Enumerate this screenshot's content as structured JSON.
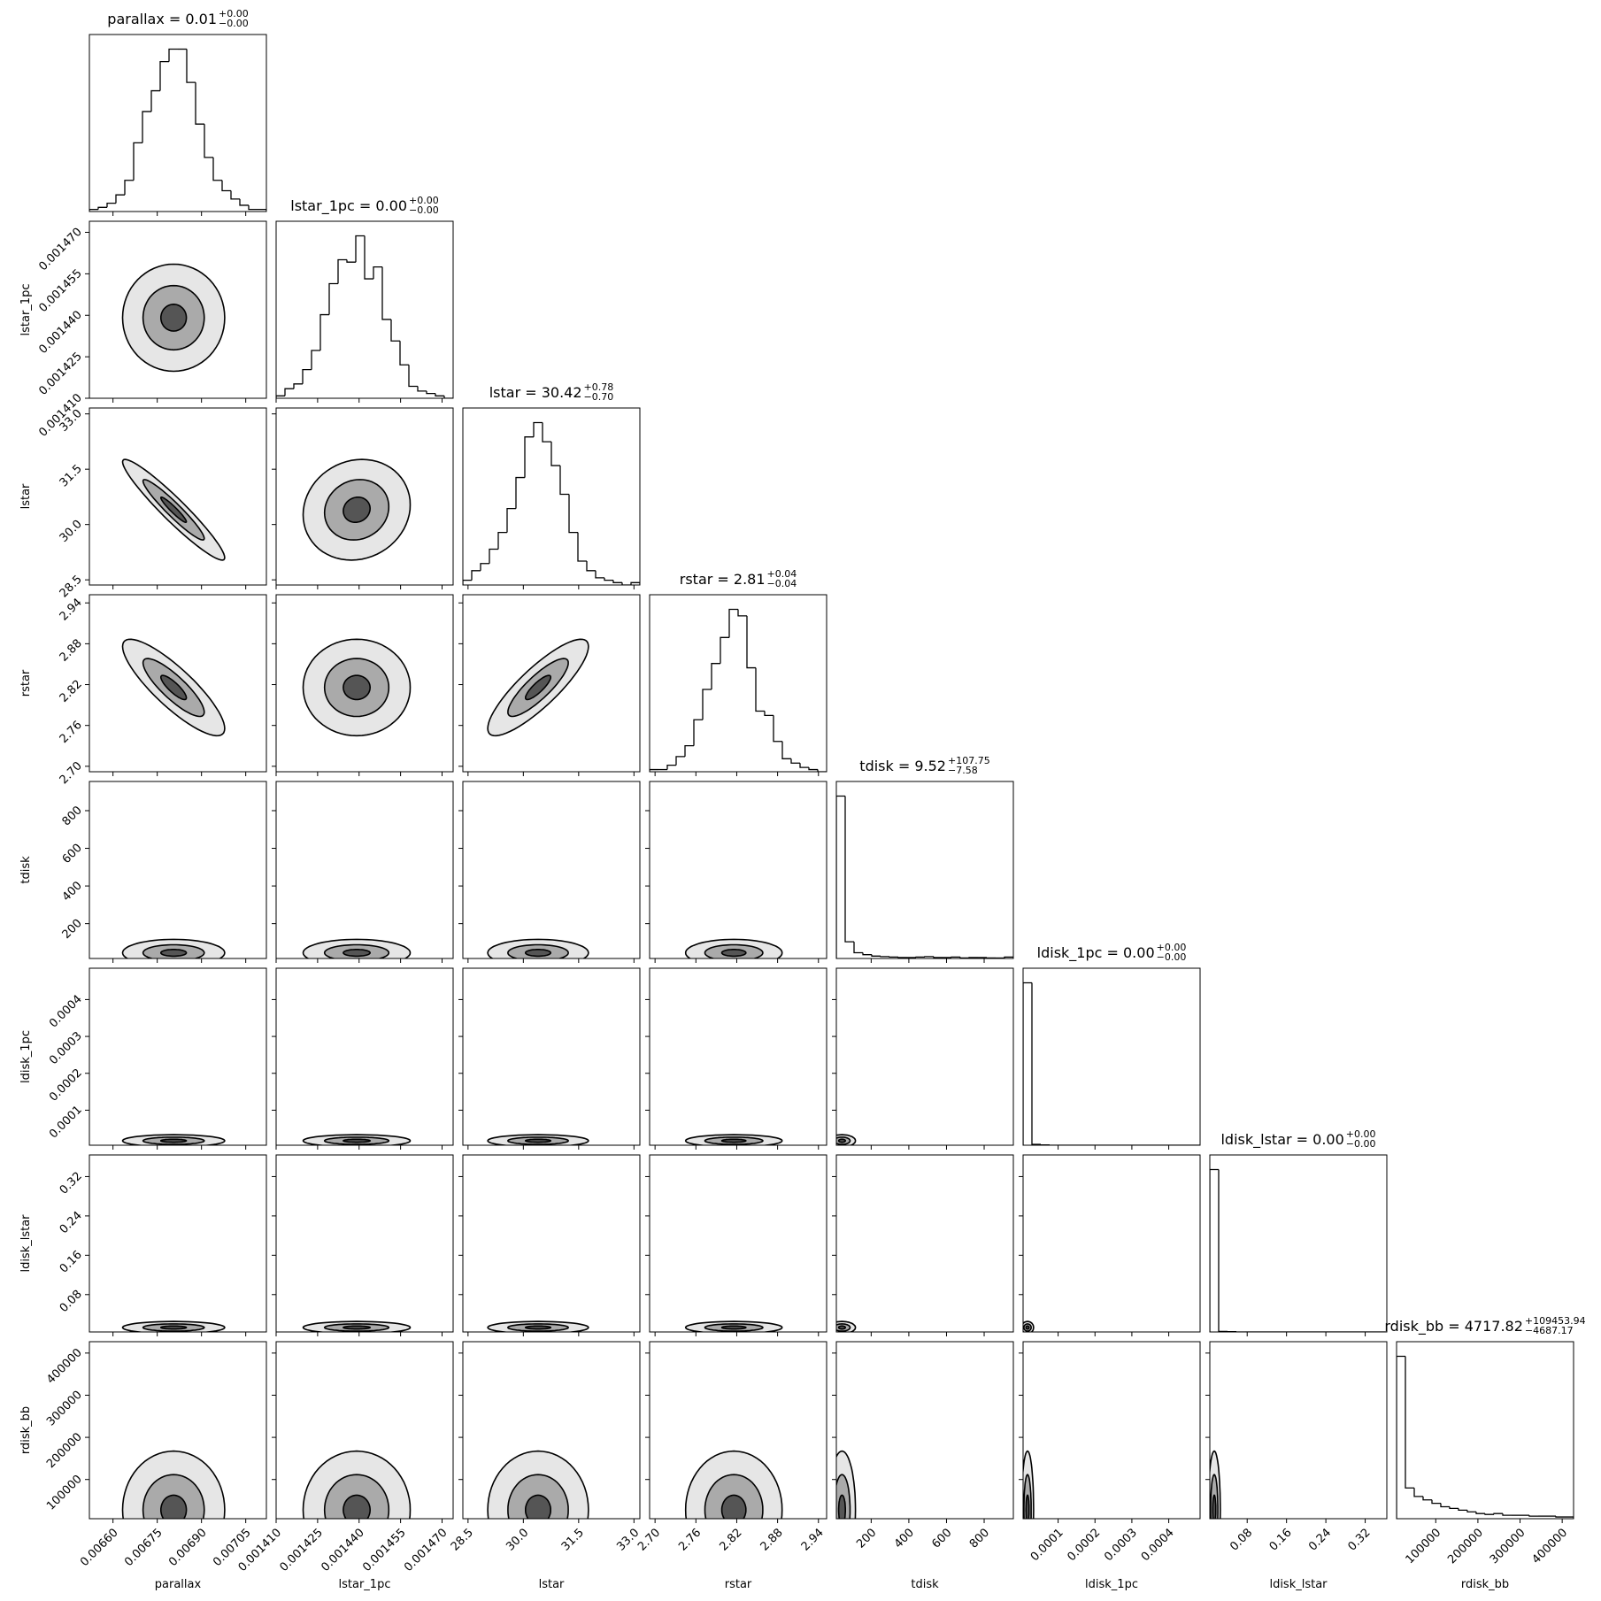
{
  "chart_data": {
    "type": "corner",
    "params": [
      {
        "name": "parallax",
        "title": "parallax = 0.01",
        "upper": "+0.00",
        "lower": "−0.00",
        "lim": [
          0.00652,
          0.00712
        ],
        "ticks": [
          {
            "value": 0.0066,
            "label": "0.00660"
          },
          0.00675,
          {
            "value": 0.0069,
            "label": "0.00690"
          },
          0.00705
        ],
        "bins": [
          0.00652,
          0.00655,
          0.00658,
          0.00661,
          0.00664,
          0.00667,
          0.0067,
          0.00673,
          0.00676,
          0.00679,
          0.00682,
          0.00685,
          0.00688,
          0.00691,
          0.00694,
          0.00697,
          0.007,
          0.00703,
          0.00706,
          0.00709,
          0.00712
        ],
        "counts": [
          1,
          2,
          4,
          8,
          15,
          33,
          48,
          58,
          72,
          78,
          78,
          62,
          42,
          26,
          15,
          10,
          6,
          3,
          1,
          1
        ]
      },
      {
        "name": "lstar_1pc",
        "title": "lstar_1pc = 0.00",
        "upper": "+0.00",
        "lower": "−0.00",
        "lim": [
          0.00141,
          0.001474
        ],
        "ticks": [
          {
            "value": 0.00141,
            "label": "0.001410"
          },
          0.001425,
          {
            "value": 0.00144,
            "label": "0.001440"
          },
          0.001455,
          {
            "value": 0.00147,
            "label": "0.001470"
          }
        ],
        "bins": [
          0.00141,
          0.0014132,
          0.0014164,
          0.0014196,
          0.0014228,
          0.001426,
          0.0014292,
          0.0014324,
          0.0014356,
          0.0014388,
          0.001442,
          0.0014452,
          0.0014484,
          0.0014516,
          0.0014548,
          0.001458,
          0.0014612,
          0.0014644,
          0.0014676,
          0.0014708,
          0.001474
        ],
        "counts": [
          1,
          4,
          6,
          12,
          20,
          35,
          48,
          58,
          57,
          68,
          50,
          55,
          33,
          24,
          14,
          5,
          3,
          2,
          1,
          0
        ]
      },
      {
        "name": "lstar",
        "title": "lstar = 30.42",
        "upper": "+0.78",
        "lower": "−0.70",
        "lim": [
          28.36,
          33.16
        ],
        "ticks": [
          28.5,
          {
            "value": 30,
            "label": "30.0"
          },
          31.5,
          {
            "value": 33,
            "label": "33.0"
          }
        ],
        "bins": [
          28.36,
          28.6,
          28.84,
          29.08,
          29.32,
          29.56,
          29.8,
          30.04,
          30.28,
          30.52,
          30.76,
          31.0,
          31.24,
          31.48,
          31.72,
          31.96,
          32.2,
          32.44,
          32.68,
          32.92,
          33.16
        ],
        "counts": [
          2,
          6,
          9,
          15,
          22,
          32,
          45,
          62,
          68,
          60,
          50,
          38,
          22,
          10,
          6,
          3,
          2,
          1,
          0,
          1
        ]
      },
      {
        "name": "rstar",
        "title": "rstar = 2.81",
        "upper": "+0.04",
        "lower": "−0.04",
        "lim": [
          2.692,
          2.952
        ],
        "ticks": [
          {
            "value": 2.7,
            "label": "2.70"
          },
          2.76,
          2.82,
          2.88,
          2.94
        ],
        "bins": [
          2.692,
          2.705,
          2.718,
          2.731,
          2.744,
          2.757,
          2.77,
          2.783,
          2.796,
          2.809,
          2.822,
          2.835,
          2.848,
          2.861,
          2.874,
          2.887,
          2.9,
          2.913,
          2.926,
          2.939,
          2.952
        ],
        "counts": [
          1,
          1,
          3,
          7,
          12,
          24,
          38,
          50,
          62,
          75,
          72,
          48,
          28,
          26,
          14,
          6,
          4,
          2,
          1,
          0
        ]
      },
      {
        "name": "tdisk",
        "title": "tdisk = 9.52",
        "upper": "+107.75",
        "lower": "−7.58",
        "lim": [
          15,
          955
        ],
        "ticks": [
          200,
          400,
          600,
          800
        ],
        "bins": [
          15,
          62,
          109,
          156,
          203,
          250,
          297,
          344,
          391,
          438,
          485,
          532,
          579,
          626,
          673,
          720,
          767,
          814,
          861,
          908,
          955
        ],
        "counts": [
          340,
          35,
          12,
          8,
          5,
          4,
          3,
          2,
          2,
          3,
          4,
          2,
          2,
          3,
          1,
          2,
          2,
          1,
          1,
          3
        ]
      },
      {
        "name": "ldisk_1pc",
        "title": "ldisk_1pc = 0.00",
        "upper": "+0.00",
        "lower": "−0.00",
        "lim": [
          5e-06,
          0.000485
        ],
        "ticks": [
          0.0001,
          0.0002,
          0.0003,
          0.0004
        ],
        "bins": [
          5e-06,
          2.9e-05,
          5.3e-05,
          7.7e-05,
          0.000101,
          0.000125,
          0.000149,
          0.000173,
          0.000197,
          0.000221,
          0.000245,
          0.000269,
          0.000293,
          0.000317,
          0.000341,
          0.000365,
          0.000389,
          0.000413,
          0.000437,
          0.000461,
          0.000485
        ],
        "counts": [
          600,
          3,
          1,
          0,
          0,
          0,
          0,
          0,
          0,
          0,
          0,
          0,
          0,
          0,
          0,
          0,
          0,
          0,
          0,
          0
        ]
      },
      {
        "name": "ldisk_lstar",
        "title": "ldisk_lstar = 0.00",
        "upper": "+0.00",
        "lower": "−0.00",
        "lim": [
          0.004,
          0.364
        ],
        "ticks": [
          0.08,
          0.16,
          0.24,
          0.32
        ],
        "bins": [
          0.004,
          0.022,
          0.04,
          0.058,
          0.076,
          0.094,
          0.112,
          0.13,
          0.148,
          0.166,
          0.184,
          0.202,
          0.22,
          0.238,
          0.256,
          0.274,
          0.292,
          0.31,
          0.328,
          0.346,
          0.364
        ],
        "counts": [
          620,
          2,
          1,
          0,
          0,
          0,
          0,
          0,
          0,
          0,
          0,
          0,
          0,
          0,
          0,
          0,
          0,
          0,
          0,
          0
        ]
      },
      {
        "name": "rdisk_bb",
        "title": "rdisk_bb = 4717.82",
        "upper": "+109453.94",
        "lower": "−4687.17",
        "lim": [
          7000,
          427000
        ],
        "ticks": [
          100000,
          200000,
          300000,
          400000
        ],
        "bins": [
          7000,
          28000,
          49000,
          70000,
          91000,
          112000,
          133000,
          154000,
          175000,
          196000,
          217000,
          238000,
          259000,
          280000,
          301000,
          322000,
          343000,
          364000,
          385000,
          406000,
          427000
        ],
        "counts": [
          190,
          36,
          26,
          22,
          18,
          14,
          12,
          10,
          8,
          6,
          5,
          6,
          4,
          4,
          4,
          3,
          3,
          3,
          2,
          2
        ]
      }
    ],
    "correlation": [
      [],
      [
        0
      ],
      [
        -0.95,
        0.1
      ],
      [
        -0.85,
        0,
        0.85
      ],
      [
        0,
        0,
        0,
        0
      ],
      [
        0,
        0,
        0,
        0,
        0
      ],
      [
        0,
        0,
        0,
        0,
        0,
        0
      ],
      [
        0,
        0,
        0,
        0,
        0,
        0,
        0
      ]
    ]
  }
}
